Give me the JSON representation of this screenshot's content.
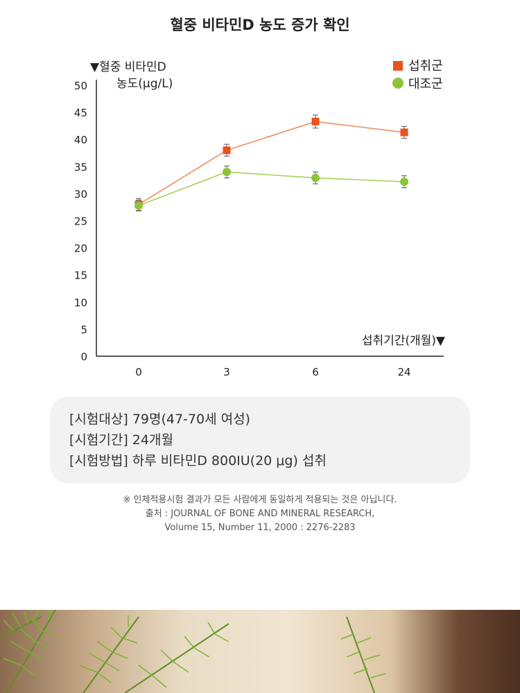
{
  "page": {
    "title": "혈중 비타민D 농도 증가 확인"
  },
  "chart_data": {
    "type": "line",
    "ylabel_line1": "▼혈중 비타민D",
    "ylabel_line2": "농도(μg/L)",
    "xlabel": "섭취기간(개월)▼",
    "categories": [
      "0",
      "3",
      "6",
      "24"
    ],
    "ylim": [
      0,
      50
    ],
    "yticks": [
      0,
      5,
      10,
      15,
      20,
      25,
      30,
      35,
      40,
      45,
      50
    ],
    "legend_position": "top-right",
    "series": [
      {
        "name": "섭취군",
        "marker": "square",
        "line_color": "#ec8e5f",
        "marker_color": "#e8531e",
        "values": [
          28.0,
          38.0,
          43.3,
          41.3
        ],
        "error": [
          1.1,
          1.1,
          1.2,
          1.1
        ]
      },
      {
        "name": "대조군",
        "marker": "circle",
        "line_color": "#a9cf58",
        "marker_color": "#8dc43a",
        "values": [
          27.8,
          34.0,
          32.9,
          32.2
        ],
        "error": [
          1.0,
          1.1,
          1.1,
          1.1
        ]
      }
    ]
  },
  "info": {
    "lines": [
      "[시험대상] 79명(47-70세 여성)",
      "[시험기간] 24개월",
      "[시험방법] 하루 비타민D 800IU(20 μg) 섭취"
    ]
  },
  "note": {
    "line1": "※ 인체적용시험 결과가 모든 사람에게 동일하게 적용되는 것은 아닙니다.",
    "line2": "출처 : JOURNAL OF BONE AND MINERAL RESEARCH,",
    "line3": "Volume 15, Number 11, 2000 : 2276-2283"
  }
}
